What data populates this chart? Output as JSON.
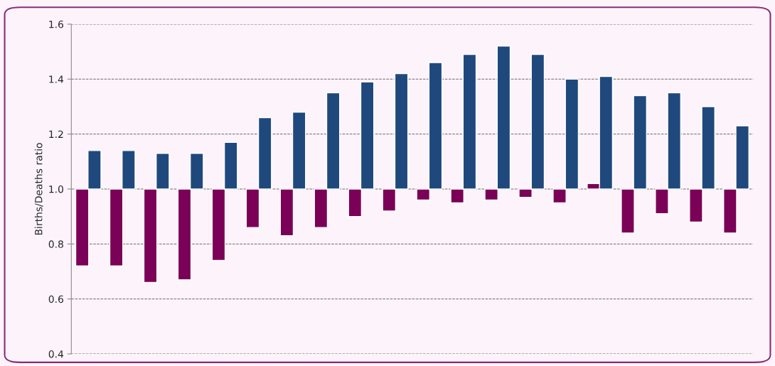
{
  "chart_data": {
    "type": "bar",
    "ylabel": "Births/Deaths ratio",
    "categories": [
      null,
      null,
      null,
      null,
      null,
      null,
      null,
      null,
      null,
      null,
      null,
      null,
      null,
      null,
      null,
      null,
      null,
      null,
      null,
      null
    ],
    "series": [
      {
        "color": "#7b0057",
        "base": [
          1,
          1,
          1,
          1,
          1,
          1,
          1,
          1,
          1,
          1,
          1,
          1,
          1,
          1,
          1,
          1,
          1,
          1,
          1,
          1
        ],
        "values": [
          -0.28,
          -0.28,
          -0.34,
          -0.33,
          -0.26,
          -0.14,
          -0.17,
          -0.14,
          -0.1,
          -0.08,
          -0.04,
          -0.05,
          -0.04,
          -0.03,
          -0.05,
          0.02,
          -0.16,
          -0.09,
          -0.12,
          -0.16
        ]
      },
      {
        "color": "#1f497d",
        "base": [
          1,
          1,
          1,
          1,
          1,
          1,
          1,
          1,
          1,
          1,
          1,
          1,
          1,
          1,
          1,
          1,
          1,
          1,
          1,
          1
        ],
        "values": [
          0.14,
          0.14,
          0.13,
          0.13,
          0.17,
          0.26,
          0.28,
          0.35,
          0.39,
          0.42,
          0.46,
          0.49,
          0.52,
          0.49,
          0.4,
          0.41,
          0.34,
          0.35,
          0.3,
          0.23
        ]
      }
    ],
    "ylim": [
      0.4,
      1.6
    ],
    "yticks": [
      {
        "value": 0.4,
        "label": "0.4"
      },
      {
        "value": 0.6,
        "label": "0.6"
      },
      {
        "value": 0.8,
        "label": "0.8"
      },
      {
        "value": 1.0,
        "label": "1.0"
      },
      {
        "value": 1.2,
        "label": "1.2"
      },
      {
        "value": 1.4,
        "label": "1.4"
      },
      {
        "value": 1.6,
        "label": "1.6"
      }
    ],
    "grid": "y",
    "legend": false,
    "tick_labels": "y"
  }
}
